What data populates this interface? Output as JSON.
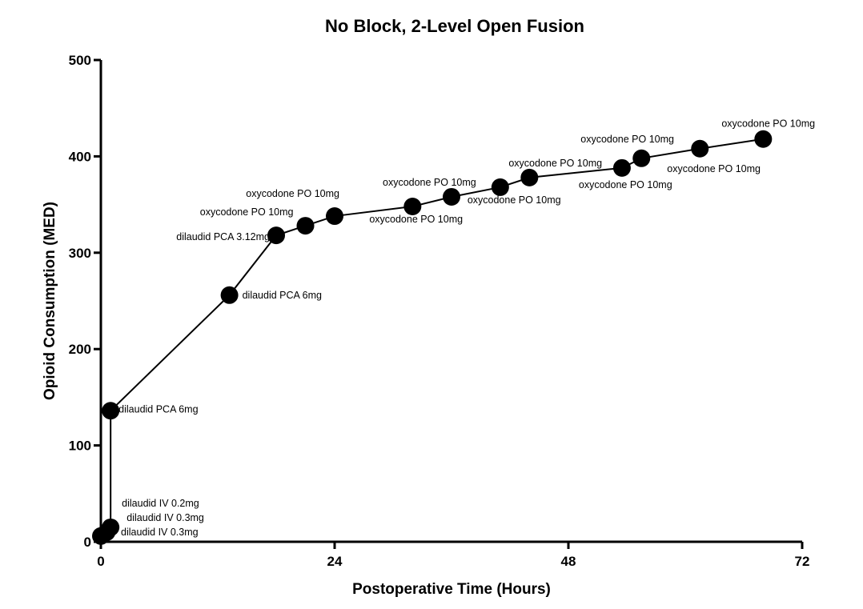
{
  "chart_data": {
    "type": "line",
    "title": "No Block, 2-Level Open Fusion",
    "xlabel": "Postoperative Time (Hours)",
    "ylabel": "Opioid Consumption (MED)",
    "xlim": [
      0,
      72
    ],
    "ylim": [
      0,
      500
    ],
    "xticks": [
      0,
      24,
      48,
      72
    ],
    "yticks": [
      0,
      100,
      200,
      300,
      400,
      500
    ],
    "grid": false,
    "legend": "none",
    "colors": {
      "line": "#000000",
      "marker": "#000000"
    },
    "points": [
      {
        "x": 0.0,
        "y": 6,
        "label": "dilaudid IV 0.3mg"
      },
      {
        "x": 0.6,
        "y": 10,
        "label": "dilaudid IV 0.3mg"
      },
      {
        "x": 1.0,
        "y": 15,
        "label": "dilaudid IV 0.2mg"
      },
      {
        "x": 1.0,
        "y": 136,
        "label": "dilaudid PCA 6mg"
      },
      {
        "x": 13.2,
        "y": 256,
        "label": "dilaudid PCA 6mg"
      },
      {
        "x": 18.0,
        "y": 318,
        "label": "dilaudid PCA 3.12mg"
      },
      {
        "x": 21.0,
        "y": 328,
        "label": "oxycodone PO 10mg"
      },
      {
        "x": 24.0,
        "y": 338,
        "label": "oxycodone PO 10mg"
      },
      {
        "x": 32.0,
        "y": 348,
        "label": "oxycodone PO 10mg"
      },
      {
        "x": 36.0,
        "y": 358,
        "label": "oxycodone PO 10mg"
      },
      {
        "x": 41.0,
        "y": 368,
        "label": "oxycodone PO 10mg"
      },
      {
        "x": 44.0,
        "y": 378,
        "label": "oxycodone PO 10mg"
      },
      {
        "x": 53.5,
        "y": 388,
        "label": "oxycodone PO 10mg"
      },
      {
        "x": 55.5,
        "y": 398,
        "label": "oxycodone PO 10mg"
      },
      {
        "x": 61.5,
        "y": 408,
        "label": "oxycodone PO 10mg"
      },
      {
        "x": 68.0,
        "y": 418,
        "label": "oxycodone PO 10mg"
      }
    ]
  }
}
